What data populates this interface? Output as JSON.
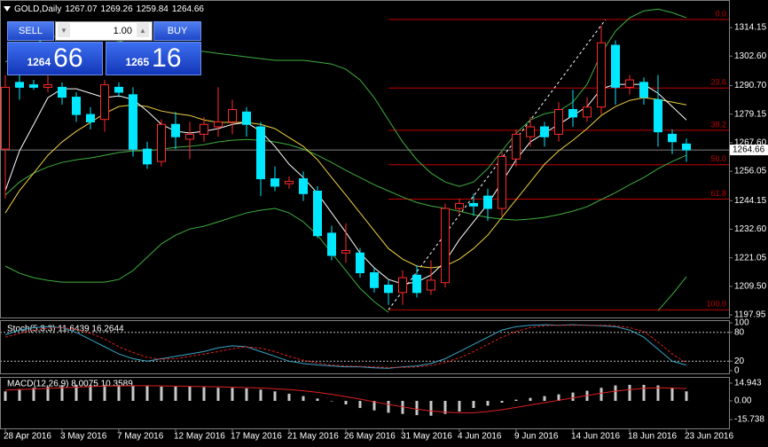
{
  "header": {
    "symbol": "GOLD,Daily",
    "open": 1267.07,
    "high": 1269.26,
    "low": 1259.84,
    "close": 1264.66
  },
  "trade_panel": {
    "sell": "SELL",
    "buy": "BUY",
    "lot": "1.00",
    "sell_price_head": "1264",
    "sell_price_tail": "66",
    "buy_price_head": "1265",
    "buy_price_tail": "16"
  },
  "chart_data": [
    {
      "type": "candlestick",
      "categories": [
        "28 Apr 2016",
        null,
        null,
        null,
        "3 May 2016",
        null,
        null,
        null,
        "7 May 2016",
        null,
        null,
        null,
        "12 May 2016",
        null,
        null,
        null,
        "17 May 2016",
        null,
        null,
        null,
        "21 May 2016",
        null,
        null,
        null,
        "26 May 2016",
        null,
        null,
        null,
        "31 May 2016",
        null,
        null,
        null,
        "4 Jun 2016",
        null,
        null,
        null,
        "9 Jun 2016",
        null,
        null,
        null,
        "14 Jun 2016",
        null,
        null,
        null,
        "18 Jun 2016",
        null,
        null,
        null,
        "23 Jun 2016"
      ],
      "open": [
        1265,
        1292,
        1291,
        1290,
        1290,
        1286,
        1279,
        1277,
        1290,
        1287,
        1265,
        1260,
        1275,
        1269,
        1271,
        1274,
        1276,
        1280,
        1274,
        1253,
        1251,
        1253,
        1248,
        1231,
        1223,
        1223,
        1215,
        1210,
        1207,
        1214,
        1208,
        1211,
        1241,
        1243,
        1246,
        1241,
        1261,
        1270,
        1274,
        1271,
        1281,
        1278,
        1282,
        1307,
        1290,
        1292,
        1285,
        1271,
        1267.07
      ],
      "high": [
        1295,
        1296,
        1293,
        1296,
        1292,
        1288,
        1282,
        1293,
        1292,
        1290,
        1268,
        1277,
        1280,
        1276,
        1278,
        1290,
        1285,
        1282,
        1276,
        1258,
        1254,
        1256,
        1250,
        1234,
        1235,
        1225,
        1217,
        1212,
        1216,
        1218,
        1220,
        1243,
        1245,
        1247,
        1249,
        1264,
        1273,
        1278,
        1276,
        1284,
        1289,
        1286,
        1315,
        1309,
        1295,
        1294,
        1295,
        1273,
        1269.26
      ],
      "low": [
        1245,
        1285,
        1289,
        1288,
        1283,
        1276,
        1273,
        1272,
        1286,
        1262,
        1257,
        1258,
        1265,
        1261,
        1268,
        1270,
        1271,
        1270,
        1246,
        1248,
        1249,
        1244,
        1229,
        1220,
        1219,
        1213,
        1207,
        1202,
        1202,
        1205,
        1206,
        1209,
        1239,
        1238,
        1236,
        1238,
        1258,
        1266,
        1266,
        1268,
        1274,
        1276,
        1279,
        1283,
        1287,
        1283,
        1266,
        1263,
        1259.84
      ],
      "close": [
        1290,
        1290,
        1290,
        1291,
        1286,
        1279,
        1276,
        1291,
        1288,
        1265,
        1259,
        1275,
        1270,
        1271,
        1275,
        1276,
        1281,
        1275,
        1253,
        1250,
        1252,
        1247,
        1230,
        1222,
        1224,
        1215,
        1209,
        1207,
        1213,
        1207,
        1212,
        1241,
        1243,
        1242,
        1241,
        1262,
        1271,
        1274,
        1270,
        1281,
        1278,
        1282,
        1308,
        1290,
        1293,
        1286,
        1272,
        1268,
        1264.66
      ],
      "up_fill": "#000000",
      "up_color": "#ff2a2a",
      "down_color": "#00e8ff",
      "overlays": [
        {
          "color": "#3fae3f",
          "values": [
            1300.2,
            1303.7,
            1307.3,
            1310.2,
            1310.9,
            1310.9,
            1310.2,
            1309.5,
            1308.8,
            1307.3,
            1306.6,
            1305.9,
            1305.2,
            1304.8,
            1304.5,
            1303.7,
            1303.0,
            1302.3,
            1301.6,
            1300.9,
            1300.9,
            1300.9,
            1300.2,
            1299.4,
            1297.3,
            1293.0,
            1285.8,
            1276.8,
            1267.9,
            1260.7,
            1255.3,
            1251.7,
            1249.9,
            1251.7,
            1257.1,
            1264.3,
            1271.4,
            1276.8,
            1279.3,
            1280.4,
            1284.0,
            1291.2,
            1303.7,
            1312.7,
            1318.1,
            1320.9,
            1321.6,
            1320.2,
            1318.1
          ]
        },
        {
          "color": "#3fae3f",
          "values": [
            1246.4,
            1251.7,
            1255.3,
            1257.8,
            1259.6,
            1260.7,
            1261.4,
            1262.5,
            1263.6,
            1264.3,
            1264.3,
            1265.0,
            1265.7,
            1266.1,
            1266.8,
            1267.9,
            1268.6,
            1268.9,
            1268.6,
            1267.9,
            1266.8,
            1265.0,
            1262.5,
            1259.6,
            1256.4,
            1253.5,
            1250.6,
            1248.1,
            1245.6,
            1243.4,
            1242.0,
            1241.0,
            1239.9,
            1238.5,
            1237.4,
            1236.7,
            1236.3,
            1236.7,
            1237.4,
            1238.5,
            1239.9,
            1241.7,
            1244.6,
            1247.4,
            1250.6,
            1253.5,
            1257.1,
            1260.0,
            1262.5
          ]
        },
        {
          "color": "#3fae3f",
          "values": [
            1217.7,
            1214.8,
            1213.0,
            1211.9,
            1211.2,
            1211.2,
            1211.2,
            1211.2,
            1212.3,
            1215.9,
            1221.3,
            1226.7,
            1230.2,
            1232.7,
            1233.8,
            1235.6,
            1237.4,
            1239.2,
            1240.3,
            1241.0,
            1239.2,
            1235.6,
            1230.2,
            1223.0,
            1215.9,
            1208.7,
            1203.3,
            1199.0,
            null,
            null,
            null,
            null,
            null,
            null,
            null,
            null,
            null,
            null,
            null,
            null,
            null,
            null,
            null,
            null,
            null,
            null,
            1199.7,
            1206.2,
            1213.4
          ]
        },
        {
          "color": "#f0d040",
          "values": [
            1239.2,
            1248.2,
            1255.3,
            1262.5,
            1267.9,
            1272.2,
            1275.8,
            1279.4,
            1282.2,
            1282.9,
            1282.2,
            1280.4,
            1279.4,
            1278.6,
            1276.8,
            1275.8,
            1275.8,
            1275.8,
            1275.0,
            1273.3,
            1269.7,
            1266.1,
            1260.7,
            1253.5,
            1246.4,
            1239.2,
            1232.0,
            1224.8,
            1220.5,
            1217.7,
            1217.0,
            1217.7,
            1220.5,
            1224.8,
            1230.2,
            1237.4,
            1244.6,
            1251.7,
            1258.9,
            1264.3,
            1268.6,
            1273.3,
            1278.6,
            1282.2,
            1284.7,
            1285.8,
            1285.1,
            1284.0,
            1282.9
          ]
        },
        {
          "color": "#ffffff",
          "values": [
            1248.2,
            1264.3,
            1275.0,
            1285.8,
            1289.4,
            1289.4,
            1287.6,
            1285.8,
            1286.5,
            1285.1,
            1280.4,
            1275.0,
            1272.2,
            1271.5,
            1272.2,
            1273.3,
            1275.0,
            1275.8,
            1272.2,
            1266.1,
            1258.9,
            1253.5,
            1247.1,
            1239.2,
            1231.3,
            1223.0,
            1217.0,
            1212.3,
            1210.5,
            1211.2,
            1214.1,
            1219.5,
            1228.4,
            1235.6,
            1242.8,
            1251.7,
            1260.7,
            1267.9,
            1271.5,
            1275.0,
            1278.6,
            1282.2,
            1289.4,
            1291.2,
            1291.2,
            1291.2,
            1287.6,
            1282.2,
            1276.8
          ]
        }
      ],
      "fibonacci": [
        {
          "label": "0.0",
          "price": 1317.4
        },
        {
          "label": "23.6",
          "price": 1289.7
        },
        {
          "label": "38.2",
          "price": 1272.6
        },
        {
          "label": "50.0",
          "price": 1258.7
        },
        {
          "label": "61.8",
          "price": 1244.8
        },
        {
          "label": "100.0",
          "price": 1200.0
        }
      ],
      "fib_color": "#c00000",
      "trendline": {
        "x": [
          27,
          42.3
        ],
        "y": [
          1200.0,
          1317.4
        ],
        "color": "#ffffff"
      },
      "last_price": 1264.66,
      "ylim": [
        1196.9,
        1325.3
      ],
      "yticks": [
        1197.95,
        {
          "value": 1209.5,
          "label": "1209.50"
        },
        1221.05,
        {
          "value": 1232.6,
          "label": "1232.60"
        },
        1244.15,
        1256.05,
        {
          "value": 1267.6,
          "label": "1267.60"
        },
        1279.15,
        {
          "value": 1290.7,
          "label": "1290.70"
        },
        {
          "value": 1302.6,
          "label": "1302.60"
        },
        1314.15
      ],
      "grid": false
    },
    {
      "type": "line",
      "title": "Stoch(5,3,3) 11.6439 16.2644",
      "series": [
        {
          "color": "#3aa6c8",
          "values": [
            75,
            85,
            90,
            92,
            90,
            80,
            65,
            50,
            35,
            25,
            20,
            25,
            30,
            35,
            40,
            48,
            52,
            50,
            40,
            30,
            20,
            15,
            12,
            10,
            8,
            8,
            6,
            5,
            8,
            10,
            15,
            25,
            40,
            55,
            70,
            85,
            92,
            95,
            96,
            95,
            96,
            95,
            94,
            92,
            85,
            70,
            45,
            20,
            11.6439
          ]
        },
        {
          "color": "#e02020",
          "dashed": true,
          "values": [
            70,
            78,
            85,
            89,
            90,
            86,
            78,
            66,
            50,
            38,
            28,
            24,
            25,
            30,
            35,
            40,
            46,
            50,
            47,
            40,
            30,
            22,
            16,
            12,
            10,
            9,
            8,
            7,
            7,
            8,
            11,
            17,
            27,
            40,
            55,
            70,
            82,
            90,
            94,
            95,
            95,
            95,
            95,
            94,
            90,
            82,
            60,
            35,
            16.2644
          ]
        }
      ],
      "levels": [
        20,
        80
      ],
      "ylim": [
        0,
        100
      ],
      "yticks": [
        0,
        20,
        80,
        100
      ]
    },
    {
      "type": "macd",
      "title": "MACD(12,26,9) 8.0075 10.3589",
      "histogram": [
        8,
        10,
        11,
        12,
        13,
        13.5,
        13.5,
        13.5,
        13,
        13,
        12.5,
        12,
        12,
        12,
        11.5,
        11,
        11,
        10.5,
        9.5,
        8,
        6,
        4,
        2,
        0,
        -3,
        -6,
        -8,
        -10,
        -11,
        -12,
        -12.5,
        -11,
        -9,
        -6,
        -4,
        -1.5,
        1,
        2.5,
        4,
        5.5,
        7,
        8.5,
        11,
        13,
        13.5,
        13.5,
        13,
        11,
        8.0075
      ],
      "histogram_color": "#c8c8c8",
      "signal": {
        "color": "#e02020",
        "values": [
          9,
          9.5,
          10,
          10.5,
          11,
          11.5,
          12,
          12.5,
          12.5,
          12.8,
          12.8,
          12.6,
          12.4,
          12.2,
          12,
          11.8,
          11.5,
          11.2,
          10.8,
          10.2,
          9.5,
          8.5,
          7.2,
          5.5,
          3.5,
          1.5,
          -0.8,
          -3,
          -5,
          -7,
          -8.5,
          -9.5,
          -10,
          -10,
          -9,
          -7.5,
          -5.5,
          -3.5,
          -1.5,
          0.5,
          2.5,
          4.5,
          6.5,
          8.2,
          9.5,
          10.5,
          11,
          10.8,
          10.3589
        ]
      },
      "ylim": [
        -22.4,
        17.9
      ],
      "yticks": [
        -15.738,
        {
          "value": 0,
          "label": "0.00"
        },
        14.943
      ]
    }
  ]
}
